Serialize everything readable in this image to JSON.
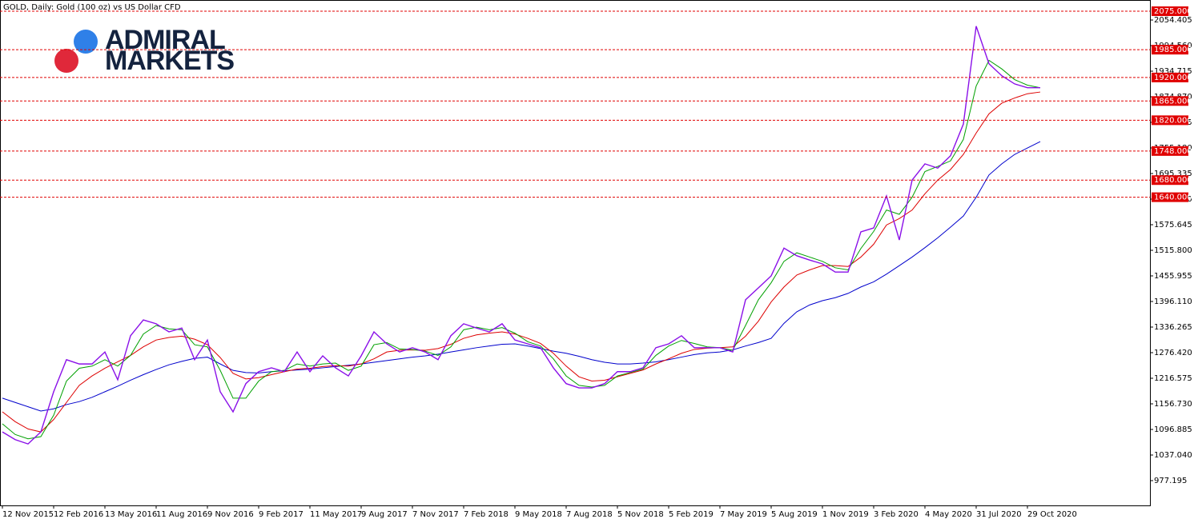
{
  "chart_data": {
    "type": "line",
    "title": "GOLD, Daily:  Gold (100 oz) vs US Dollar CFD",
    "logo": {
      "line1": "ADMIRAL",
      "line2": "MARKETS"
    },
    "categories": [
      "12 Nov 2015",
      null,
      null,
      null,
      "12 Feb 2016",
      null,
      null,
      null,
      "13 May 2016",
      null,
      null,
      null,
      "11 Aug 2016",
      null,
      null,
      null,
      "9 Nov 2016",
      null,
      null,
      null,
      "9 Feb 2017",
      null,
      null,
      null,
      "11 May 2017",
      null,
      null,
      null,
      "9 Aug 2017",
      null,
      null,
      null,
      "7 Nov 2017",
      null,
      null,
      null,
      "7 Feb 2018",
      null,
      null,
      null,
      "9 May 2018",
      null,
      null,
      null,
      "7 Aug 2018",
      null,
      null,
      null,
      "5 Nov 2018",
      null,
      null,
      null,
      "5 Feb 2019",
      null,
      null,
      null,
      "7 May 2019",
      null,
      null,
      null,
      "5 Aug 2019",
      null,
      null,
      null,
      "1 Nov 2019",
      null,
      null,
      null,
      "3 Feb 2020",
      null,
      null,
      null,
      "4 May 2020",
      null,
      null,
      null,
      "31 Jul 2020",
      null,
      null,
      null,
      "29 Oct 2020",
      null
    ],
    "series": [
      {
        "color": "#0000cc",
        "values": [
          1170,
          1160,
          1150,
          1140,
          1145,
          1155,
          1162,
          1172,
          1185,
          1198,
          1212,
          1225,
          1237,
          1248,
          1256,
          1263,
          1266,
          1250,
          1235,
          1230,
          1229,
          1232,
          1234,
          1236,
          1238,
          1241,
          1244,
          1247,
          1250,
          1254,
          1258,
          1262,
          1266,
          1269,
          1273,
          1278,
          1283,
          1288,
          1292,
          1296,
          1297,
          1292,
          1286,
          1280,
          1275,
          1268,
          1260,
          1254,
          1250,
          1250,
          1252,
          1255,
          1260,
          1266,
          1272,
          1276,
          1278,
          1283,
          1292,
          1300,
          1310,
          1345,
          1372,
          1388,
          1398,
          1405,
          1415,
          1430,
          1442,
          1460,
          1480,
          1500,
          1522,
          1545,
          1570,
          1596,
          1640,
          1692,
          1718,
          1740,
          1755,
          1770
        ]
      },
      {
        "color": "#dd0000",
        "values": [
          1138,
          1115,
          1098,
          1091,
          1120,
          1160,
          1200,
          1222,
          1240,
          1255,
          1270,
          1290,
          1306,
          1312,
          1315,
          1308,
          1295,
          1265,
          1228,
          1215,
          1218,
          1225,
          1232,
          1238,
          1240,
          1244,
          1246,
          1245,
          1250,
          1262,
          1278,
          1282,
          1283,
          1282,
          1286,
          1296,
          1310,
          1318,
          1322,
          1325,
          1320,
          1310,
          1298,
          1275,
          1245,
          1220,
          1210,
          1212,
          1220,
          1228,
          1236,
          1250,
          1262,
          1275,
          1284,
          1287,
          1288,
          1290,
          1315,
          1350,
          1395,
          1430,
          1458,
          1470,
          1480,
          1480,
          1478,
          1500,
          1530,
          1575,
          1590,
          1610,
          1648,
          1680,
          1705,
          1740,
          1790,
          1835,
          1860,
          1872,
          1882,
          1886
        ]
      },
      {
        "color": "#00a000",
        "values": [
          1110,
          1085,
          1075,
          1080,
          1130,
          1210,
          1240,
          1245,
          1260,
          1245,
          1270,
          1320,
          1340,
          1332,
          1330,
          1295,
          1290,
          1235,
          1170,
          1170,
          1210,
          1232,
          1235,
          1250,
          1245,
          1250,
          1252,
          1235,
          1245,
          1295,
          1300,
          1285,
          1284,
          1280,
          1270,
          1290,
          1330,
          1336,
          1330,
          1335,
          1322,
          1302,
          1292,
          1262,
          1222,
          1200,
          1196,
          1200,
          1222,
          1230,
          1238,
          1270,
          1292,
          1305,
          1298,
          1290,
          1288,
          1282,
          1340,
          1400,
          1440,
          1490,
          1510,
          1500,
          1490,
          1475,
          1470,
          1520,
          1560,
          1610,
          1600,
          1640,
          1700,
          1712,
          1725,
          1775,
          1900,
          1960,
          1940,
          1915,
          1902,
          1896
        ]
      },
      {
        "color": "#8a10e8",
        "values": [
          1091,
          1073,
          1063,
          1091,
          1185,
          1260,
          1250,
          1250,
          1278,
          1213,
          1316,
          1353,
          1344,
          1325,
          1334,
          1260,
          1306,
          1185,
          1138,
          1204,
          1232,
          1241,
          1232,
          1278,
          1232,
          1269,
          1241,
          1222,
          1269,
          1325,
          1297,
          1278,
          1288,
          1278,
          1260,
          1316,
          1344,
          1334,
          1325,
          1344,
          1306,
          1297,
          1288,
          1241,
          1204,
          1194,
          1194,
          1204,
          1232,
          1232,
          1241,
          1288,
          1297,
          1316,
          1288,
          1288,
          1288,
          1278,
          1400,
          1428,
          1456,
          1521,
          1503,
          1493,
          1484,
          1465,
          1465,
          1559,
          1568,
          1643,
          1540,
          1680,
          1718,
          1708,
          1737,
          1811,
          2040,
          1952,
          1924,
          1905,
          1896,
          1896
        ]
      }
    ],
    "ylim": [
      919.2,
      2101.2
    ],
    "yticks": [
      2054.405,
      {
        "value": 1994.56,
        "label": "1994.560"
      },
      1934.715,
      {
        "value": 1874.87,
        "label": "1874.870"
      },
      1815.025,
      {
        "value": 1755.18,
        "label": "1755.180"
      },
      1695.335,
      {
        "value": 1635.49,
        "label": "1635.490"
      },
      1575.645,
      {
        "value": 1515.8,
        "label": "1515.800"
      },
      1455.955,
      {
        "value": 1396.11,
        "label": "1396.110"
      },
      1336.265,
      {
        "value": 1276.42,
        "label": "1276.420"
      },
      1216.575,
      {
        "value": 1156.73,
        "label": "1156.730"
      },
      1096.885,
      {
        "value": 1037.04,
        "label": "1037.040"
      },
      977.195
    ],
    "levels": [
      {
        "value": 2075,
        "label": "2075.000"
      },
      {
        "value": 1985,
        "label": "1985.000"
      },
      {
        "value": 1920,
        "label": "1920.000"
      },
      {
        "value": 1865,
        "label": "1865.000"
      },
      {
        "value": 1820,
        "label": "1820.000"
      },
      {
        "value": 1748,
        "label": "1748.000"
      },
      {
        "value": 1680,
        "label": "1680.000"
      },
      {
        "value": 1640,
        "label": "1640.000"
      }
    ],
    "level_color": "#e00000"
  }
}
